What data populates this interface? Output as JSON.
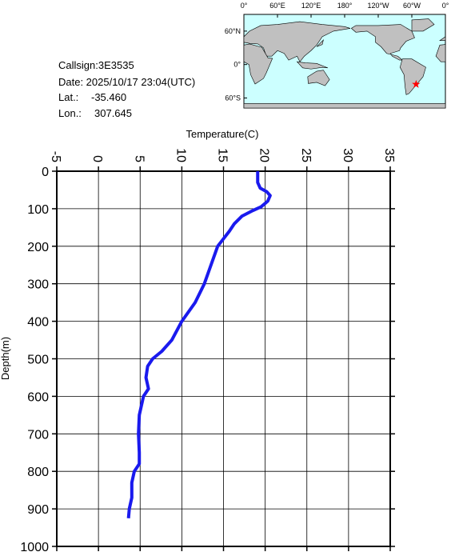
{
  "info": {
    "callsign": "Callsign:3E3535",
    "date": "Date:  2025/10/17 23:04(UTC)",
    "lat_label": "Lat.:",
    "lat": {
      "value": -35.46,
      "label": "-35.460"
    },
    "lon_label": "Lon.:",
    "lon": {
      "value": 307.645,
      "label": "307.645"
    }
  },
  "map": {
    "lonlim": [
      0,
      360
    ],
    "latlim": [
      -78,
      90
    ],
    "lonticks": [
      {
        "value": 0,
        "label": "0°"
      },
      {
        "value": 60,
        "label": "60°E"
      },
      {
        "value": 120,
        "label": "120°E"
      },
      {
        "value": 180,
        "label": "180°"
      },
      {
        "value": 240,
        "label": "120°W"
      },
      {
        "value": 300,
        "label": "60°W"
      },
      {
        "value": 360,
        "label": "0°"
      }
    ],
    "latticks": [
      {
        "value": 60,
        "label": "60°N"
      },
      {
        "value": 0,
        "label": "0°"
      },
      {
        "value": -60,
        "label": "60°S"
      }
    ],
    "ocean_color": "#ccffff",
    "land_color": "#c0c0c0",
    "marker_color": "#ff0000"
  },
  "chart_data": {
    "type": "line",
    "xlabel": "Temperature(C)",
    "ylabel": "Depth(m)",
    "xlim": [
      -5,
      35
    ],
    "xticks": [
      -5,
      0,
      5,
      10,
      15,
      20,
      25,
      30,
      35
    ],
    "ylim": [
      0,
      1000
    ],
    "yticks": [
      0,
      100,
      200,
      300,
      400,
      500,
      600,
      700,
      800,
      900,
      1000
    ],
    "y_inverted": true,
    "grid": true,
    "color": "#1a1aee",
    "depth": [
      0,
      30,
      45,
      55,
      65,
      80,
      95,
      105,
      120,
      140,
      160,
      180,
      200,
      250,
      300,
      350,
      400,
      450,
      480,
      500,
      520,
      550,
      580,
      600,
      650,
      700,
      750,
      780,
      800,
      830,
      870,
      900,
      925
    ],
    "values": [
      19.1,
      19.1,
      19.4,
      20.2,
      20.6,
      20.3,
      19.5,
      18.5,
      17.2,
      16.3,
      15.7,
      15.0,
      14.3,
      13.5,
      12.7,
      11.6,
      10.0,
      8.8,
      7.6,
      6.5,
      5.9,
      5.7,
      6.0,
      5.4,
      4.9,
      4.8,
      4.9,
      4.9,
      4.3,
      4.0,
      4.0,
      3.7,
      3.6
    ]
  }
}
